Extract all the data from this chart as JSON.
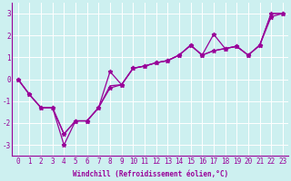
{
  "xlabel": "Windchill (Refroidissement éolien,°C)",
  "bg_color": "#cdf0f0",
  "line_color": "#990099",
  "xlim": [
    -0.5,
    23.5
  ],
  "ylim": [
    -3.5,
    3.5
  ],
  "yticks": [
    -3,
    -2,
    -1,
    0,
    1,
    2,
    3
  ],
  "xticks": [
    0,
    1,
    2,
    3,
    4,
    5,
    6,
    7,
    8,
    9,
    10,
    11,
    12,
    13,
    14,
    15,
    16,
    17,
    18,
    19,
    20,
    21,
    22,
    23
  ],
  "line1_x": [
    0,
    1,
    2,
    3,
    4,
    5,
    6,
    7,
    8,
    9,
    10,
    11,
    12,
    13,
    14,
    15,
    16,
    17,
    18,
    19,
    20,
    21,
    22,
    23
  ],
  "line1_y": [
    0.0,
    -0.7,
    -1.3,
    -1.3,
    -2.5,
    -1.9,
    -1.9,
    -1.3,
    0.35,
    -0.25,
    0.5,
    0.6,
    0.75,
    0.85,
    1.1,
    1.55,
    1.1,
    2.05,
    1.4,
    1.5,
    1.1,
    1.55,
    2.85,
    3.0
  ],
  "line2_x": [
    0,
    1,
    2,
    3,
    4,
    5,
    6,
    7,
    8,
    9,
    10,
    11,
    12,
    13,
    14,
    15,
    16,
    17,
    18,
    19,
    20,
    21,
    22,
    23
  ],
  "line2_y": [
    0.0,
    -0.7,
    -1.3,
    -1.3,
    -3.0,
    -1.9,
    -1.9,
    -1.3,
    -0.4,
    -0.25,
    0.5,
    0.6,
    0.75,
    0.85,
    1.1,
    1.55,
    1.1,
    1.3,
    1.4,
    1.5,
    1.1,
    1.55,
    3.0,
    3.0
  ],
  "line3_x": [
    0,
    1,
    2,
    3,
    4,
    5,
    6,
    7,
    8,
    9,
    10,
    11,
    12,
    13,
    14,
    15,
    16,
    17,
    18,
    19,
    20,
    21,
    22,
    23
  ],
  "line3_y": [
    0.0,
    -0.7,
    -1.3,
    -1.3,
    -2.5,
    -1.9,
    -1.9,
    -1.3,
    -0.3,
    -0.25,
    0.5,
    0.6,
    0.75,
    0.85,
    1.1,
    1.55,
    1.1,
    1.3,
    1.4,
    1.5,
    1.1,
    1.55,
    3.0,
    3.0
  ],
  "tick_fontsize": 5.5,
  "xlabel_fontsize": 5.5,
  "marker_size": 3.5,
  "linewidth": 0.9
}
